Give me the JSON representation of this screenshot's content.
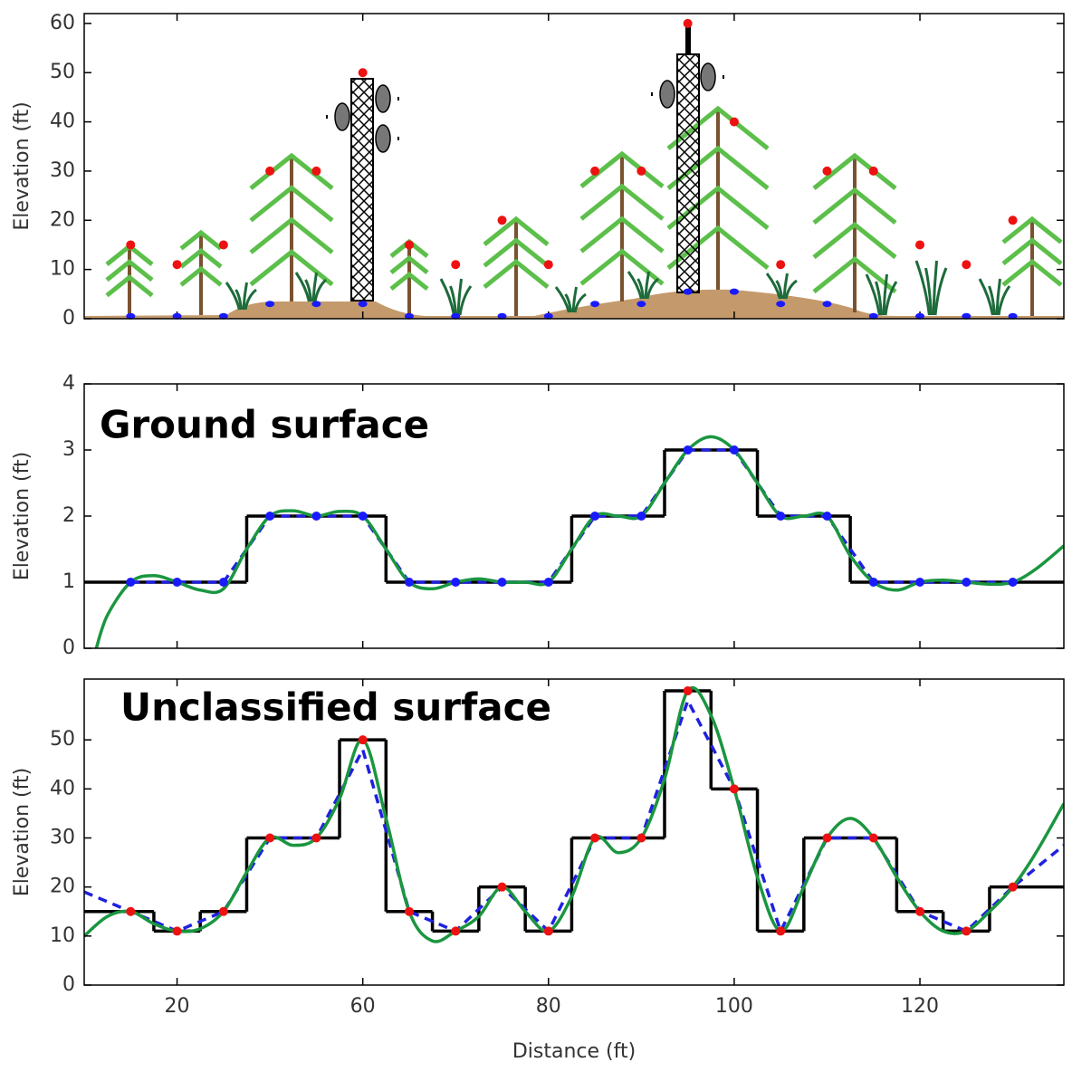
{
  "chart_data": [
    {
      "type": "scatter",
      "ylabel": "Elevation (ft)",
      "xlim": [
        10,
        115.5
      ],
      "ylim": [
        0,
        62
      ],
      "yticks": [
        0,
        10,
        20,
        30,
        40,
        50,
        60
      ],
      "series": [
        {
          "style": "points",
          "color": "#1a1aff",
          "x": [
            15,
            20,
            25,
            30,
            35,
            40,
            45,
            50,
            55,
            60,
            65,
            70,
            75,
            80,
            85,
            90,
            95,
            100,
            105,
            110
          ],
          "values": [
            0.5,
            0.5,
            0.5,
            3,
            3,
            3,
            0.5,
            0.5,
            0.5,
            0.5,
            3,
            3,
            5.5,
            5.5,
            3,
            3,
            0.5,
            0.5,
            0.5,
            0.5
          ]
        },
        {
          "style": "points",
          "color": "#ee1111",
          "x": [
            15,
            20,
            25,
            30,
            35,
            40,
            45,
            50,
            55,
            60,
            65,
            70,
            75,
            80,
            85,
            90,
            95,
            100,
            105,
            110
          ],
          "values": [
            15,
            11,
            15,
            30,
            30,
            50,
            15,
            11,
            20,
            11,
            30,
            30,
            60,
            40,
            11,
            30,
            30,
            15,
            11,
            20
          ]
        }
      ]
    },
    {
      "type": "line",
      "ylabel": "Elevation (ft)",
      "annotation": "Ground surface",
      "xlim": [
        10,
        115.5
      ],
      "ylim": [
        0,
        4
      ],
      "yticks": [
        0,
        1,
        2,
        3,
        4
      ],
      "series": [
        {
          "style": "step",
          "color": "#000000",
          "x": [
            15,
            20,
            25,
            30,
            35,
            40,
            45,
            50,
            55,
            60,
            65,
            70,
            75,
            80,
            85,
            90,
            95,
            100,
            105,
            110
          ],
          "values": [
            1,
            1,
            1,
            2,
            2,
            2,
            1,
            1,
            1,
            1,
            2,
            2,
            3,
            3,
            2,
            2,
            1,
            1,
            1,
            1
          ]
        },
        {
          "style": "dashed",
          "color": "#2020e0",
          "x": [
            15,
            20,
            25,
            30,
            35,
            40,
            45,
            50,
            55,
            60,
            65,
            70,
            75,
            80,
            85,
            90,
            95,
            100,
            105,
            110
          ],
          "values": [
            1,
            1,
            1,
            2,
            2,
            2,
            1,
            1,
            1,
            1,
            2,
            2,
            3,
            3,
            2,
            2,
            1,
            1,
            1,
            1
          ]
        },
        {
          "style": "smooth",
          "color": "#1a9640",
          "x": [
            11.3,
            12.5,
            15,
            17.5,
            20,
            22.5,
            25,
            27.5,
            30,
            32.5,
            35,
            37.5,
            40,
            42.5,
            45,
            47.5,
            50,
            52.5,
            55,
            57.5,
            60,
            62.5,
            65,
            67.5,
            70,
            72.5,
            75,
            77.5,
            80,
            82.5,
            85,
            87.5,
            90,
            92.5,
            95,
            97.5,
            100,
            102.5,
            105,
            107.5,
            110,
            112.5,
            115.5
          ],
          "values": [
            0,
            0.5,
            1,
            1.1,
            1,
            0.88,
            0.9,
            1.5,
            2,
            2.08,
            2,
            2.07,
            2,
            1.5,
            1,
            0.9,
            1,
            1.05,
            1,
            1,
            1,
            1.5,
            2,
            2,
            2,
            2.5,
            3,
            3.2,
            3,
            2.5,
            2,
            2,
            2,
            1.4,
            1,
            0.88,
            1,
            1.03,
            1,
            0.97,
            1,
            1.2,
            1.55
          ]
        },
        {
          "style": "points",
          "color": "#1a1aff",
          "x": [
            15,
            20,
            25,
            30,
            35,
            40,
            45,
            50,
            55,
            60,
            65,
            70,
            75,
            80,
            85,
            90,
            95,
            100,
            105,
            110
          ],
          "values": [
            1,
            1,
            1,
            2,
            2,
            2,
            1,
            1,
            1,
            1,
            2,
            2,
            3,
            3,
            2,
            2,
            1,
            1,
            1,
            1
          ]
        }
      ]
    },
    {
      "type": "line",
      "ylabel": "Elevation (ft)",
      "xlabel": "Distance (ft)",
      "annotation": "Unclassified surface",
      "xlim": [
        10,
        115.5
      ],
      "ylim": [
        0,
        62.4
      ],
      "yticks": [
        0,
        10,
        20,
        30,
        40,
        50
      ],
      "xticks": [
        20,
        {
          "value": 40,
          "label": "60"
        },
        {
          "value": 60,
          "label": "80"
        },
        {
          "value": 80,
          "label": "100"
        },
        {
          "value": 100,
          "label": "120"
        }
      ],
      "series": [
        {
          "style": "step",
          "color": "#000000",
          "x": [
            15,
            20,
            25,
            30,
            35,
            40,
            45,
            50,
            55,
            60,
            65,
            70,
            75,
            80,
            85,
            90,
            95,
            100,
            105,
            110
          ],
          "values": [
            15,
            11,
            15,
            30,
            30,
            50,
            15,
            11,
            20,
            11,
            30,
            30,
            60,
            40,
            11,
            30,
            30,
            15,
            11,
            20
          ]
        },
        {
          "style": "dashed",
          "color": "#2020e0",
          "x": [
            10,
            15,
            20,
            25,
            30,
            35,
            40,
            45,
            50,
            55,
            60,
            65,
            70,
            75,
            80,
            85,
            90,
            95,
            100,
            105,
            110,
            115.5
          ],
          "values": [
            19,
            15,
            11,
            15,
            30,
            30,
            48,
            15,
            11,
            20,
            11,
            30,
            30,
            58,
            40,
            11,
            30,
            30,
            15,
            11,
            20,
            28.5
          ]
        },
        {
          "style": "smooth",
          "color": "#1a9640",
          "x": [
            10,
            12.5,
            15,
            17.5,
            20,
            22.5,
            25,
            27.5,
            30,
            32.5,
            35,
            37.5,
            40,
            42.5,
            45,
            47.5,
            50,
            52.5,
            55,
            57.5,
            60,
            62.5,
            65,
            67.5,
            70,
            72.5,
            75,
            77.5,
            80,
            82.5,
            85,
            87.5,
            90,
            92.5,
            95,
            97.5,
            100,
            102.5,
            105,
            107.5,
            110,
            112.5,
            115.5
          ],
          "values": [
            10,
            14,
            15,
            12.5,
            11,
            11.5,
            15,
            23,
            30,
            28.5,
            30,
            38,
            50,
            34,
            15,
            9,
            11,
            14,
            20,
            15,
            11,
            18,
            30,
            27,
            30,
            42,
            60,
            55,
            40,
            22,
            11,
            20,
            30,
            34,
            30,
            22,
            15,
            11,
            11,
            15,
            20,
            27,
            37
          ]
        },
        {
          "style": "points",
          "color": "#ee1111",
          "x": [
            15,
            20,
            25,
            30,
            35,
            40,
            45,
            50,
            55,
            60,
            65,
            70,
            75,
            80,
            85,
            90,
            95,
            100,
            105,
            110
          ],
          "values": [
            15,
            11,
            15,
            30,
            30,
            50,
            15,
            11,
            20,
            11,
            30,
            30,
            60,
            40,
            11,
            30,
            30,
            15,
            11,
            20
          ]
        }
      ]
    }
  ]
}
